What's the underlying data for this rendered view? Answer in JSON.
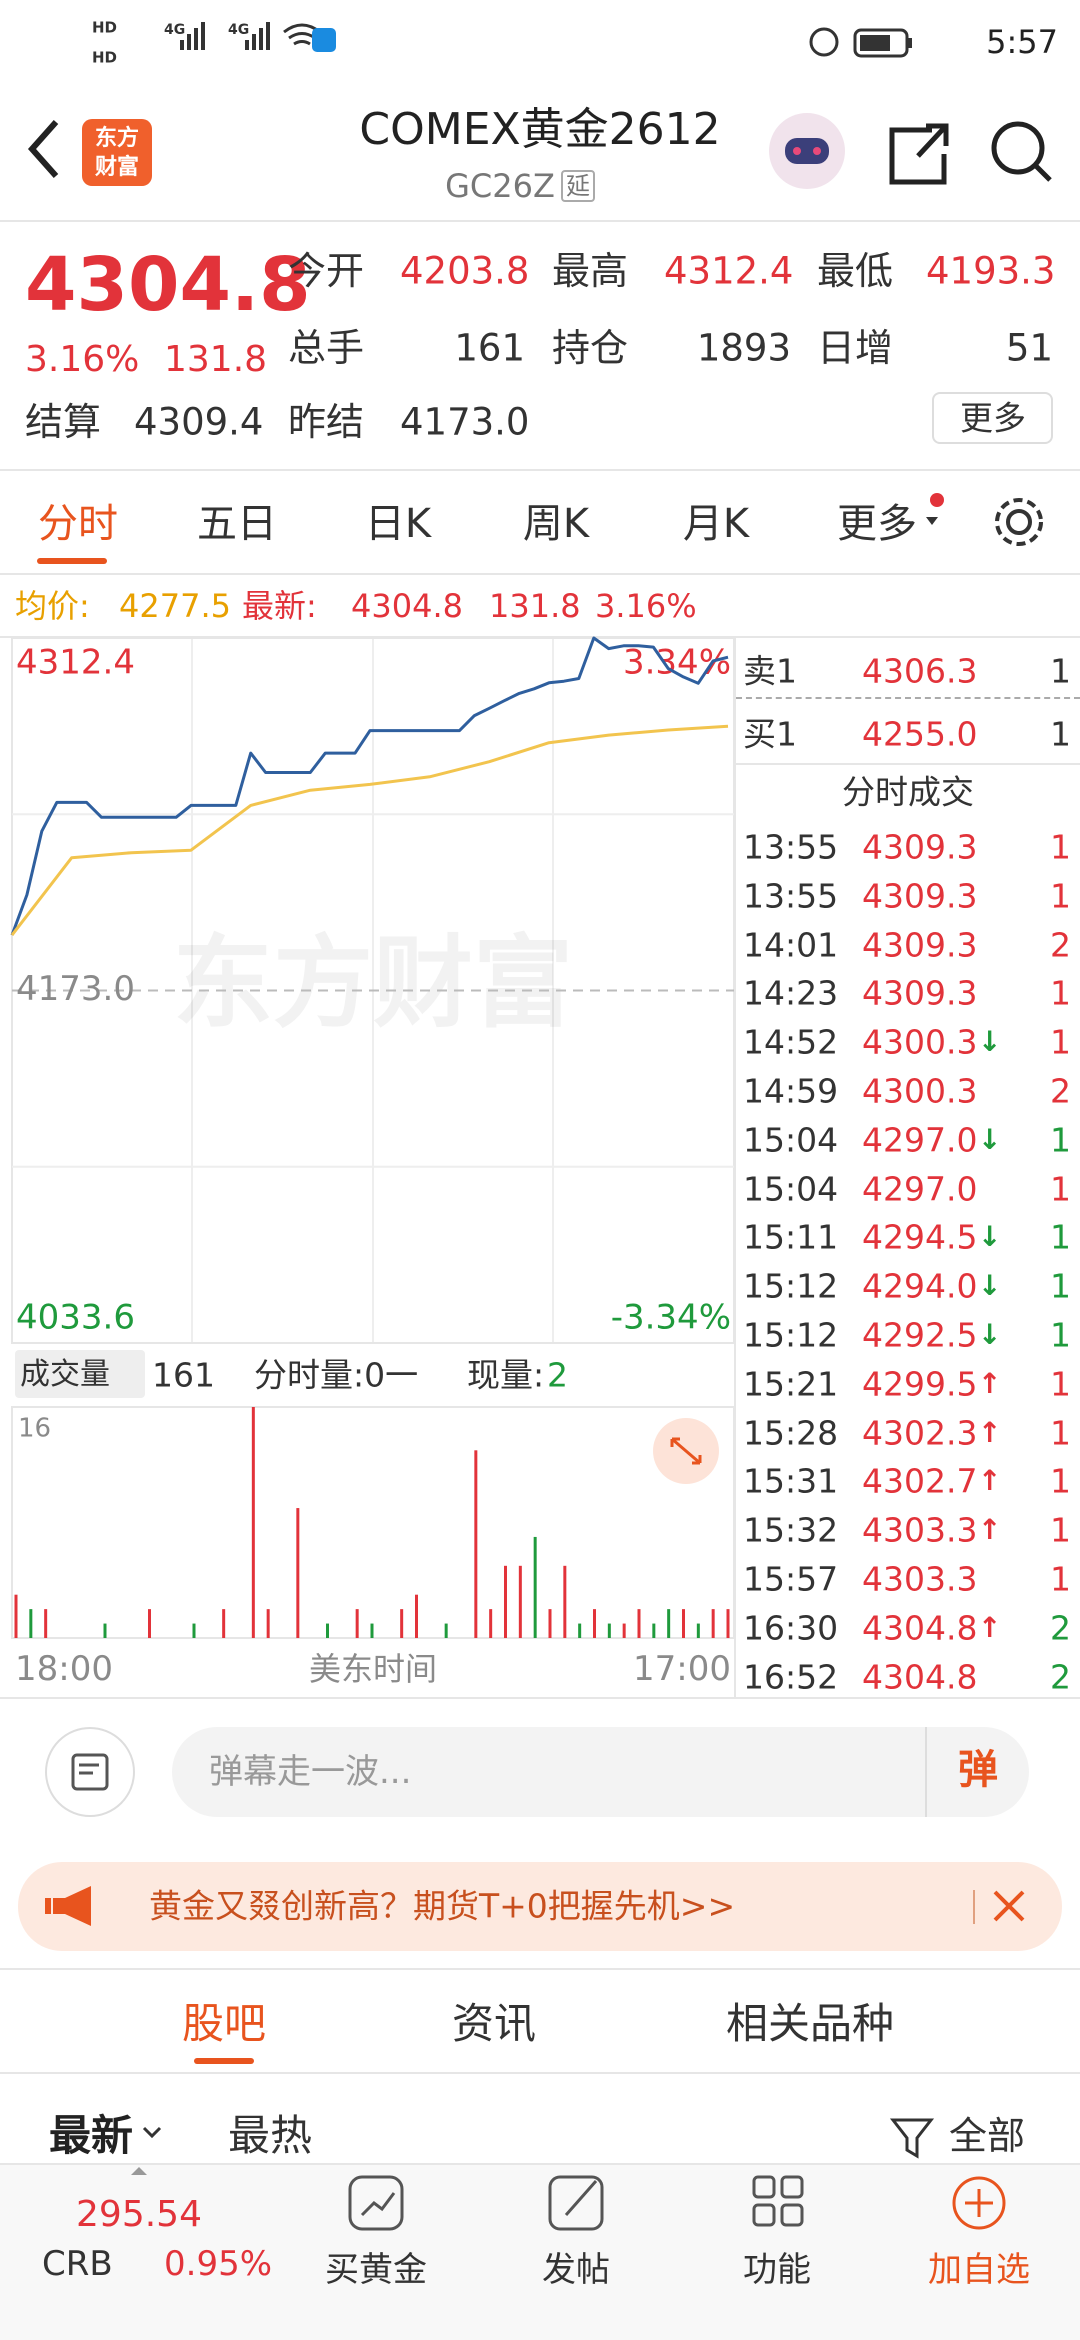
{
  "status_bar": {
    "time": "5:57",
    "sim_labels": [
      "HD",
      "HD"
    ],
    "network": [
      "4G",
      "4G"
    ]
  },
  "header": {
    "logo": [
      "东方",
      "财富"
    ],
    "title": "COMEX黄金2612",
    "code": "GC26Z",
    "tag": "延"
  },
  "quote": {
    "price": "4304.8",
    "change_pct": "3.16%",
    "change": "131.8",
    "fields": [
      {
        "label": "今开",
        "value": "4203.8"
      },
      {
        "label": "最高",
        "value": "4312.4"
      },
      {
        "label": "最低",
        "value": "4193.3"
      },
      {
        "label": "总手",
        "value": "161"
      },
      {
        "label": "持仓",
        "value": "1893"
      },
      {
        "label": "日增",
        "value": "51"
      },
      {
        "label": "结算",
        "value": "4309.4"
      },
      {
        "label": "昨结",
        "value": "4173.0"
      }
    ],
    "more": "更多"
  },
  "tabs": {
    "items": [
      "分时",
      "五日",
      "日K",
      "周K",
      "月K",
      "更多"
    ],
    "active": 0
  },
  "summary": {
    "avg_label": "均价:",
    "avg": "4277.5",
    "last_label": "最新:",
    "last": "4304.8",
    "change": "131.8",
    "pct": "3.16%"
  },
  "order_book": [
    {
      "label": "卖1",
      "price": "4306.3",
      "qty": "1"
    },
    {
      "label": "买1",
      "price": "4255.0",
      "qty": "1"
    }
  ],
  "trades_title": "分时成交",
  "trades": [
    {
      "time": "13:55",
      "price": "4309.3",
      "dir": "",
      "qty": "1",
      "color": "#e2333a"
    },
    {
      "time": "13:55",
      "price": "4309.3",
      "dir": "",
      "qty": "1",
      "color": "#e2333a"
    },
    {
      "time": "14:01",
      "price": "4309.3",
      "dir": "",
      "qty": "2",
      "color": "#e2333a"
    },
    {
      "time": "14:23",
      "price": "4309.3",
      "dir": "",
      "qty": "1",
      "color": "#e2333a"
    },
    {
      "time": "14:52",
      "price": "4300.3",
      "dir": "↓",
      "qty": "1",
      "color": "#e2333a"
    },
    {
      "time": "14:59",
      "price": "4300.3",
      "dir": "",
      "qty": "2",
      "color": "#e2333a"
    },
    {
      "time": "15:04",
      "price": "4297.0",
      "dir": "↓",
      "qty": "1",
      "color": "#1f9a3c"
    },
    {
      "time": "15:04",
      "price": "4297.0",
      "dir": "",
      "qty": "1",
      "color": "#e2333a"
    },
    {
      "time": "15:11",
      "price": "4294.5",
      "dir": "↓",
      "qty": "1",
      "color": "#1f9a3c"
    },
    {
      "time": "15:12",
      "price": "4294.0",
      "dir": "↓",
      "qty": "1",
      "color": "#1f9a3c"
    },
    {
      "time": "15:12",
      "price": "4292.5",
      "dir": "↓",
      "qty": "1",
      "color": "#1f9a3c"
    },
    {
      "time": "15:21",
      "price": "4299.5",
      "dir": "↑",
      "qty": "1",
      "color": "#e2333a"
    },
    {
      "time": "15:28",
      "price": "4302.3",
      "dir": "↑",
      "qty": "1",
      "color": "#e2333a"
    },
    {
      "time": "15:31",
      "price": "4302.7",
      "dir": "↑",
      "qty": "1",
      "color": "#e2333a"
    },
    {
      "time": "15:32",
      "price": "4303.3",
      "dir": "↑",
      "qty": "1",
      "color": "#e2333a"
    },
    {
      "time": "15:57",
      "price": "4303.3",
      "dir": "",
      "qty": "1",
      "color": "#e2333a"
    },
    {
      "time": "16:30",
      "price": "4304.8",
      "dir": "↑",
      "qty": "2",
      "color": "#1f9a3c"
    },
    {
      "time": "16:52",
      "price": "4304.8",
      "dir": "",
      "qty": "2",
      "color": "#1f9a3c"
    }
  ],
  "volume_bar": {
    "label": "成交量",
    "total": "161",
    "mode": "分时量:0一",
    "current_label": "现量:",
    "current": "2"
  },
  "watermark": "东方财富",
  "chart_data": [
    {
      "type": "line",
      "ylim": [
        4033.6,
        4312.4
      ],
      "yticks": [
        4312.4,
        {
          "value": 4173,
          "label": "4173.0"
        },
        4033.6
      ],
      "y2lim": [
        -3.34,
        3.34
      ],
      "y2ticks": [
        {
          "value": 3.34,
          "label": "3.34%"
        },
        {
          "value": -3.34,
          "label": "-3.34%"
        }
      ],
      "xtick_labels": [
        "18:00",
        "17:00"
      ],
      "xlabel": "美东时间",
      "series": [
        {
          "color": "#2f5f9e",
          "values": [
            4194.9,
            4210.8,
            4236,
            4247.4,
            4247.4,
            4247.4,
            4241.5,
            4241.5,
            4241.5,
            4241.5,
            4241.5,
            4241.5,
            4246.2,
            4246.2,
            4246.2,
            4246.2,
            4266.9,
            4259.2,
            4259.2,
            4259.2,
            4259.2,
            4266.9,
            4266.9,
            4266.9,
            4275.8,
            4275.8,
            4275.8,
            4275.8,
            4275.8,
            4275.8,
            4275.8,
            4281.7,
            4284.6,
            4287.6,
            4290.5,
            4292.3,
            4294.7,
            4295.3,
            4296.4,
            4312.4,
            4308.2,
            4309.3,
            4309.3,
            4308.8,
            4300.3,
            4297.0,
            4294.5,
            4303.3,
            4304.8
          ]
        },
        {
          "color": "#f2c44e",
          "values": [
            4194.9,
            4225.5,
            4227.5,
            4228.5,
            4246.2,
            4252.2,
            4254.5,
            4257.5,
            4263.5,
            4271.0,
            4274.0,
            4276.0,
            4277.5
          ]
        }
      ]
    },
    {
      "type": "bar",
      "ylim": [
        0,
        16
      ],
      "yticks": [
        16
      ],
      "values": [
        3,
        2,
        2,
        0,
        0,
        0,
        1,
        0,
        0,
        2,
        0,
        0,
        1,
        0,
        2,
        0,
        16,
        2,
        0,
        9,
        0,
        1,
        0,
        2,
        1,
        0,
        2,
        3,
        0,
        1,
        0,
        13,
        2,
        5,
        5,
        7,
        2,
        5,
        1,
        2,
        1,
        1,
        2,
        1,
        2,
        2,
        1,
        2,
        2
      ],
      "colors": [
        "#e2333a",
        "#1f9a3c",
        "#e2333a",
        "#e2333a",
        "#e2333a",
        "#e2333a",
        "#1f9a3c",
        "#e2333a",
        "#e2333a",
        "#e2333a",
        "#e2333a",
        "#e2333a",
        "#1f9a3c",
        "#e2333a",
        "#e2333a",
        "#e2333a",
        "#e2333a",
        "#e2333a",
        "#e2333a",
        "#e2333a",
        "#e2333a",
        "#1f9a3c",
        "#e2333a",
        "#e2333a",
        "#1f9a3c",
        "#e2333a",
        "#e2333a",
        "#e2333a",
        "#e2333a",
        "#1f9a3c",
        "#e2333a",
        "#e2333a",
        "#e2333a",
        "#e2333a",
        "#e2333a",
        "#1f9a3c",
        "#e2333a",
        "#e2333a",
        "#1f9a3c",
        "#e2333a",
        "#1f9a3c",
        "#e2333a",
        "#e2333a",
        "#1f9a3c",
        "#1f9a3c",
        "#e2333a",
        "#1f9a3c",
        "#e2333a",
        "#e2333a"
      ]
    }
  ],
  "comment": {
    "placeholder": "弹幕走一波...",
    "button": "弹"
  },
  "banner": "黄金又叕创新高？期货T+0把握先机>>",
  "section_tabs": {
    "items": [
      "股吧",
      "资讯",
      "相关品种"
    ],
    "active": 0
  },
  "filter": {
    "latest": "最新",
    "hot": "最热",
    "all": "全部"
  },
  "bottom_nav": {
    "index": {
      "value": "295.54",
      "name": "CRB",
      "pct": "0.95%"
    },
    "items": [
      "买黄金",
      "发帖",
      "功能",
      "加自选"
    ]
  }
}
